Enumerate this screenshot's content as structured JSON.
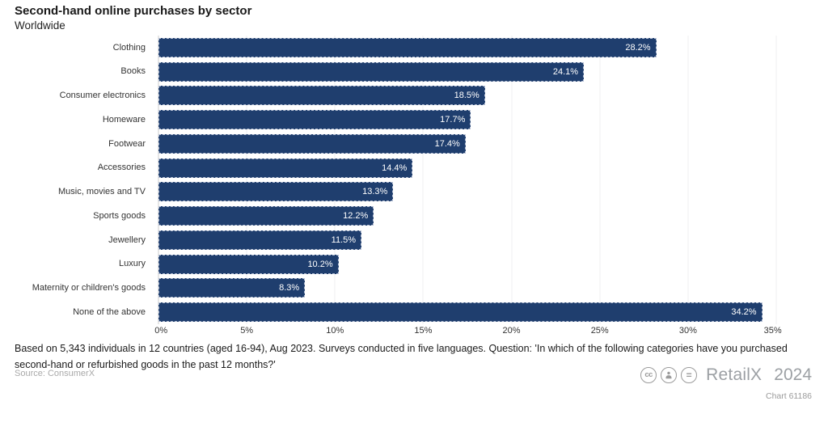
{
  "header": {
    "title": "Second-hand online purchases by sector",
    "subtitle": "Worldwide"
  },
  "chart_data": {
    "type": "bar",
    "orientation": "horizontal",
    "title": "Second-hand online purchases by sector",
    "subtitle": "Worldwide",
    "categories": [
      "Clothing",
      "Books",
      "Consumer electronics",
      "Homeware",
      "Footwear",
      "Accessories",
      "Music, movies and TV",
      "Sports goods",
      "Jewellery",
      "Luxury",
      "Maternity or children's goods",
      "None of the above"
    ],
    "values": [
      28.2,
      24.1,
      18.5,
      17.7,
      17.4,
      14.4,
      13.3,
      12.2,
      11.5,
      10.2,
      8.3,
      34.2
    ],
    "value_labels": [
      "28.2%",
      "24.1%",
      "18.5%",
      "17.7%",
      "17.4%",
      "14.4%",
      "13.3%",
      "12.2%",
      "11.5%",
      "10.2%",
      "8.3%",
      "34.2%"
    ],
    "x_ticks": [
      "0%",
      "5%",
      "10%",
      "15%",
      "20%",
      "25%",
      "30%",
      "35%"
    ],
    "xlim": [
      0,
      35
    ],
    "xlabel": "",
    "ylabel": "",
    "grid": true,
    "legend": false,
    "bar_color": "#1f3e6e",
    "value_label_color": "#ffffff"
  },
  "footer": {
    "note": "Based on 5,343 individuals in 12 countries (aged 16-94), Aug 2023. Surveys conducted in five languages. Question: 'In which of the following categories have you purchased second-hand or refurbished goods in the past 12 months?'",
    "source": "Source: ConsumerX",
    "brand": "RetailX",
    "year": "2024",
    "chart_id": "Chart 61186"
  }
}
